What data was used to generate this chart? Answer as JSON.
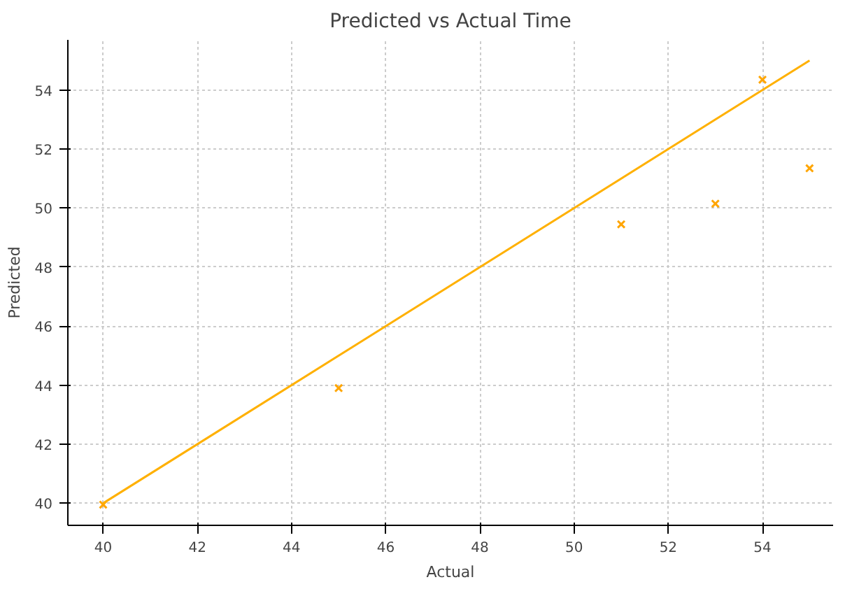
{
  "chart_data": {
    "type": "scatter",
    "title": "Predicted vs Actual Time",
    "xlabel": "Actual",
    "ylabel": "Predicted",
    "xlim": [
      39.25,
      55.5
    ],
    "ylim": [
      39.25,
      55.7
    ],
    "xticks": [
      40,
      42,
      44,
      46,
      48,
      50,
      52,
      54
    ],
    "yticks": [
      40,
      42,
      44,
      46,
      48,
      50,
      52,
      54
    ],
    "grid": true,
    "series": [
      {
        "marker": "cross",
        "color": "#ffa500",
        "x": [
          40,
          45,
          51,
          53,
          54,
          55
        ],
        "values": [
          39.95,
          43.9,
          49.45,
          50.15,
          54.35,
          51.35
        ]
      },
      {
        "type": "line",
        "color": "#ffb000",
        "x": [
          40,
          55
        ],
        "values": [
          40,
          55
        ],
        "line_style": "solid",
        "marker": "none"
      }
    ]
  }
}
